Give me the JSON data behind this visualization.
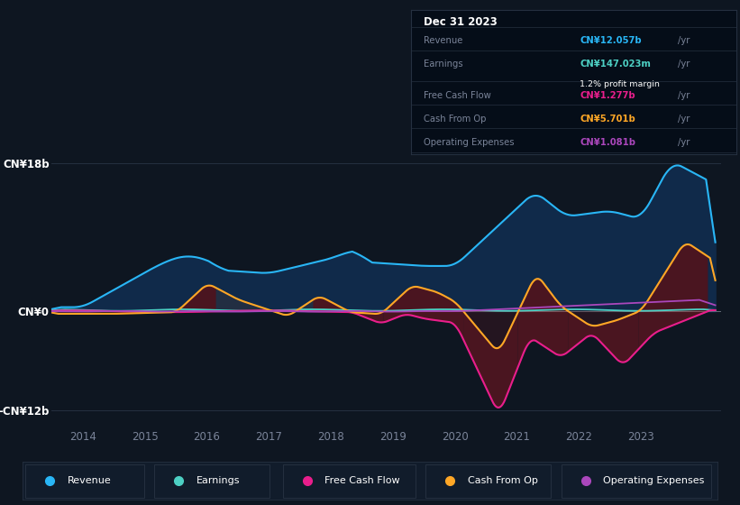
{
  "bg_color": "#0e1621",
  "plot_bg_color": "#0e1621",
  "grid_color": "#1c2840",
  "text_color": "#7a8499",
  "ylim": [
    -14,
    20
  ],
  "ytick_positions": [
    -12,
    0,
    18
  ],
  "ytick_labels": [
    "-CN¥12b",
    "CN¥0",
    "CN¥18b"
  ],
  "xlim": [
    2013.5,
    2024.3
  ],
  "xticks": [
    2014,
    2015,
    2016,
    2017,
    2018,
    2019,
    2020,
    2021,
    2022,
    2023
  ],
  "colors": {
    "revenue": "#29b6f6",
    "revenue_fill": "#102a4a",
    "earnings": "#4dd0c4",
    "free_cash_flow": "#e91e8c",
    "cash_from_op": "#ffa726",
    "operating_expenses": "#ab47bc",
    "cop_fill_pos": "#3a3010",
    "cop_fill_neg": "#3a1010",
    "dark_red_fill": "#4a1520",
    "gray_fill": "#2a3040"
  },
  "tooltip": {
    "date": "Dec 31 2023",
    "revenue_label": "Revenue",
    "revenue_val": "CN¥12.057b",
    "earnings_label": "Earnings",
    "earnings_val": "CN¥147.023m",
    "margin_text": "1.2% profit margin",
    "fcf_label": "Free Cash Flow",
    "fcf_val": "CN¥1.277b",
    "cop_label": "Cash From Op",
    "cop_val": "CN¥5.701b",
    "opex_label": "Operating Expenses",
    "opex_val": "CN¥1.081b"
  },
  "legend": [
    {
      "label": "Revenue",
      "color": "#29b6f6"
    },
    {
      "label": "Earnings",
      "color": "#4dd0c4"
    },
    {
      "label": "Free Cash Flow",
      "color": "#e91e8c"
    },
    {
      "label": "Cash From Op",
      "color": "#ffa726"
    },
    {
      "label": "Operating Expenses",
      "color": "#ab47bc"
    }
  ]
}
